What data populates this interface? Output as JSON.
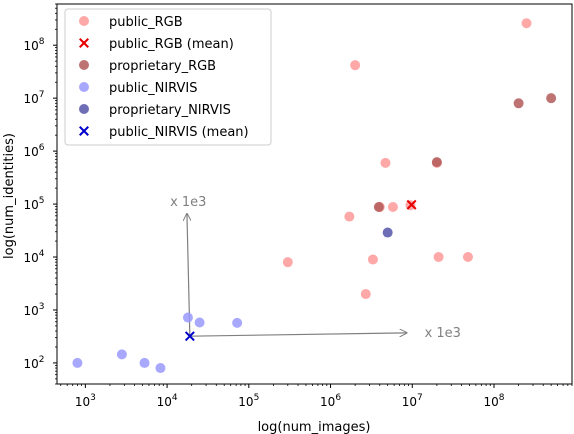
{
  "chart_data": {
    "type": "scatter",
    "xlabel": "log(num_images)",
    "ylabel": "log(num_identities)",
    "xscale": "log",
    "yscale": "log",
    "xlim": [
      450,
      900000000
    ],
    "ylim": [
      40,
      600000000
    ],
    "x_ticks": [
      {
        "value": 1000,
        "base": "10",
        "exp": "3"
      },
      {
        "value": 10000,
        "base": "10",
        "exp": "4"
      },
      {
        "value": 100000,
        "base": "10",
        "exp": "5"
      },
      {
        "value": 1000000,
        "base": "10",
        "exp": "6"
      },
      {
        "value": 10000000,
        "base": "10",
        "exp": "7"
      },
      {
        "value": 100000000,
        "base": "10",
        "exp": "8"
      }
    ],
    "y_ticks": [
      {
        "value": 100,
        "base": "10",
        "exp": "2"
      },
      {
        "value": 1000,
        "base": "10",
        "exp": "3"
      },
      {
        "value": 10000,
        "base": "10",
        "exp": "4"
      },
      {
        "value": 100000,
        "base": "10",
        "exp": "5"
      },
      {
        "value": 1000000,
        "base": "10",
        "exp": "6"
      },
      {
        "value": 10000000,
        "base": "10",
        "exp": "7"
      },
      {
        "value": 100000000,
        "base": "10",
        "exp": "8"
      }
    ],
    "grid": false,
    "legend_position": "top-left",
    "series": [
      {
        "name": "public_RGB",
        "marker": "circle",
        "color": "#ff9999",
        "points": [
          {
            "x": 250000000,
            "y": 260000000
          },
          {
            "x": 2000000,
            "y": 42000000
          },
          {
            "x": 4700000,
            "y": 600000
          },
          {
            "x": 20000000,
            "y": 600000
          },
          {
            "x": 1700000,
            "y": 58000
          },
          {
            "x": 4000000,
            "y": 88000
          },
          {
            "x": 5800000,
            "y": 88000
          },
          {
            "x": 9500000,
            "y": 95000
          },
          {
            "x": 300000,
            "y": 8000
          },
          {
            "x": 3300000,
            "y": 9000
          },
          {
            "x": 21000000,
            "y": 10000
          },
          {
            "x": 48000000,
            "y": 10000
          },
          {
            "x": 2700000,
            "y": 2000
          }
        ]
      },
      {
        "name": "public_RGB (mean)",
        "marker": "x",
        "color": "#e60000",
        "points": [
          {
            "x": 9800000,
            "y": 97000
          }
        ]
      },
      {
        "name": "proprietary_RGB",
        "marker": "circle",
        "color": "#b35a5a",
        "points": [
          {
            "x": 200000000,
            "y": 8000000
          },
          {
            "x": 500000000,
            "y": 10000000
          },
          {
            "x": 20000000,
            "y": 620000
          },
          {
            "x": 3900000,
            "y": 88000
          }
        ]
      },
      {
        "name": "public_NIRVIS",
        "marker": "circle",
        "color": "#9999ff",
        "points": [
          {
            "x": 800,
            "y": 100
          },
          {
            "x": 2800,
            "y": 145
          },
          {
            "x": 5300,
            "y": 100
          },
          {
            "x": 8300,
            "y": 80
          },
          {
            "x": 18000,
            "y": 720
          },
          {
            "x": 25000,
            "y": 580
          },
          {
            "x": 72000,
            "y": 570
          }
        ]
      },
      {
        "name": "proprietary_NIRVIS",
        "marker": "circle",
        "color": "#5555aa",
        "points": [
          {
            "x": 5000000,
            "y": 29000
          }
        ]
      },
      {
        "name": "public_NIRVIS (mean)",
        "marker": "x",
        "color": "#0000cc",
        "points": [
          {
            "x": 19000,
            "y": 320
          }
        ]
      }
    ],
    "annotations": [
      {
        "text": "x 1e3",
        "from": {
          "x": 19000,
          "y": 320
        },
        "to": {
          "x": 17500,
          "y": 65000
        },
        "label_at": {
          "x": 10000,
          "y": 100000
        },
        "color": "#808080"
      },
      {
        "text": "x 1e3",
        "from": {
          "x": 19000,
          "y": 320
        },
        "to": {
          "x": 8500000,
          "y": 370
        },
        "label_at": {
          "x": 13000000,
          "y": 340
        },
        "color": "#808080"
      }
    ]
  }
}
